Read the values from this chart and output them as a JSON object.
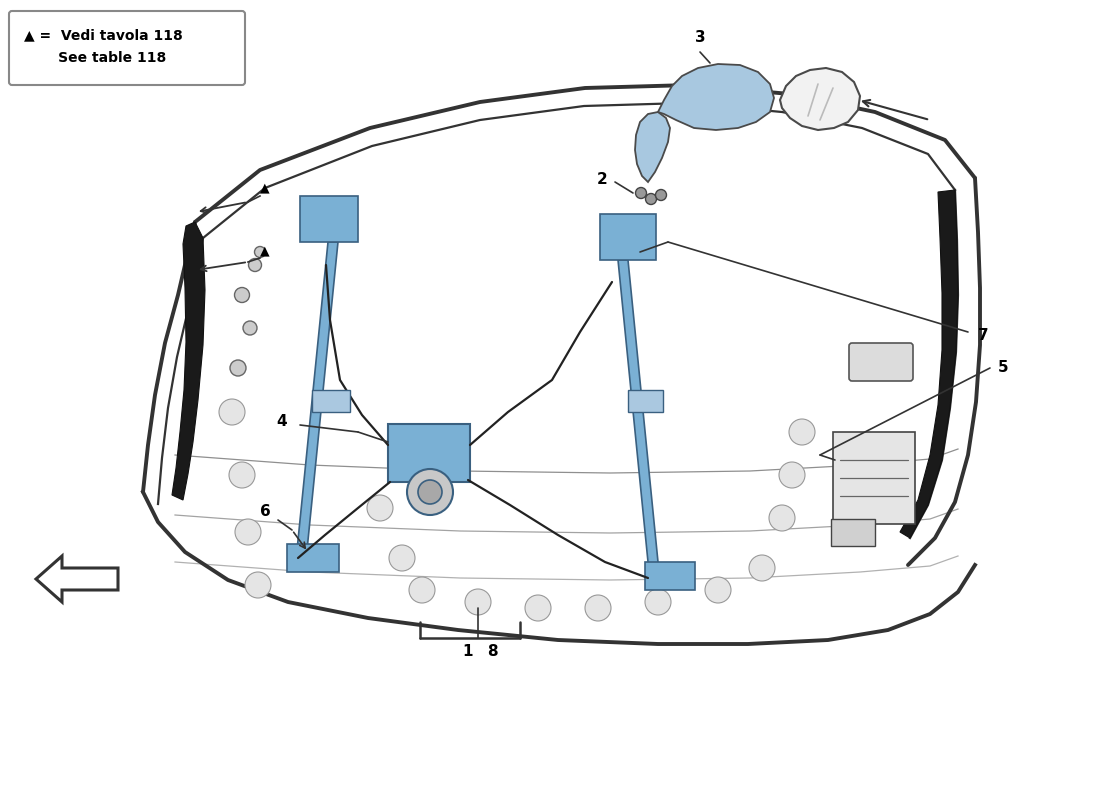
{
  "background_color": "#ffffff",
  "legend_text_line1": "▲ =  Vedi tavola 118",
  "legend_text_line2": "       See table 118",
  "blue_highlight": "#aac8e0",
  "door_line_color": "#333333",
  "component_blue": "#7ab0d4",
  "dark_trim": "#222222",
  "mirror_blue": "#a8c8e0"
}
